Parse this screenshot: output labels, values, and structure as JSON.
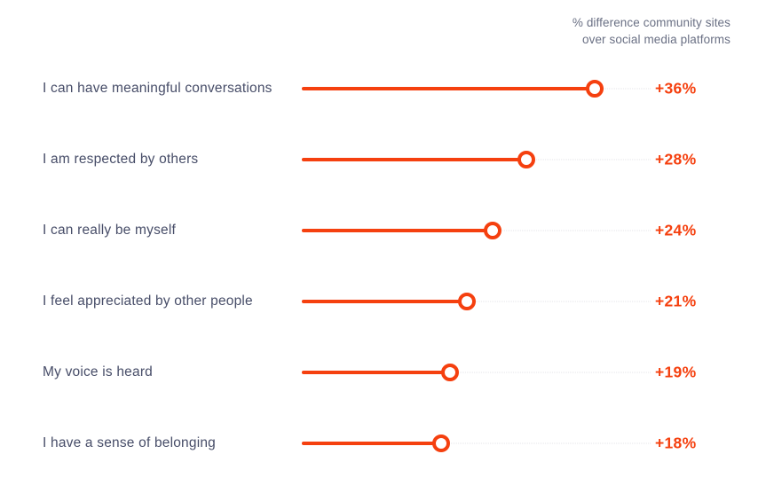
{
  "header": {
    "line1": "% difference community sites",
    "line2": "over social media platforms"
  },
  "colors": {
    "accent": "#F5400F",
    "label_text": "#474D68",
    "header_text": "#6A7084",
    "track": "#E6E6EA"
  },
  "chart_data": {
    "type": "bar",
    "variant": "horizontal-lollipop",
    "title": "% difference community sites over social media platforms",
    "categories": [
      "I can have meaningful conversations",
      "I am respected by others",
      "I can really be myself",
      "I feel appreciated by other people",
      "My voice is heard",
      "I have a sense of belonging"
    ],
    "values": [
      36,
      28,
      24,
      21,
      19,
      18
    ],
    "value_labels": [
      "+36%",
      "+28%",
      "+24%",
      "+21%",
      "+19%",
      "+18%"
    ],
    "unit": "%",
    "xlim": [
      0,
      43
    ],
    "grid": false,
    "legend": false,
    "value_label_position": "right",
    "marker": "open-circle"
  }
}
